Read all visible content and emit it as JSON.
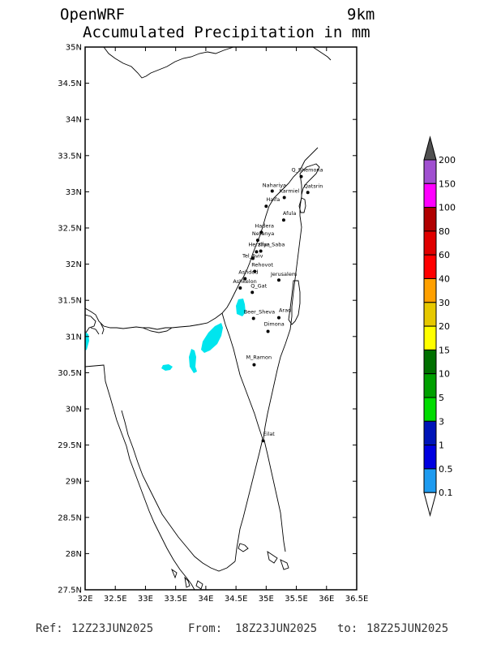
{
  "header": {
    "model": "OpenWRF",
    "resolution": "9km",
    "product": "Accumulated Precipitation in mm"
  },
  "axes": {
    "lat_ticks": [
      "35N",
      "34.5N",
      "34N",
      "33.5N",
      "33N",
      "32.5N",
      "32N",
      "31.5N",
      "31N",
      "30.5N",
      "30N",
      "29.5N",
      "29N",
      "28.5N",
      "28N",
      "27.5N"
    ],
    "lon_ticks": [
      "32E",
      "32.5E",
      "33E",
      "33.5E",
      "34E",
      "34.5E",
      "35E",
      "35.5E",
      "36E",
      "36.5E"
    ],
    "lat_range": [
      27.5,
      35
    ],
    "lon_range": [
      32,
      36.5
    ]
  },
  "cities": [
    {
      "name": "Q_Shemona",
      "lon": 35.58,
      "lat": 33.21
    },
    {
      "name": "Nahariya",
      "lon": 35.1,
      "lat": 33.01
    },
    {
      "name": "Karmiel",
      "lon": 35.3,
      "lat": 32.92
    },
    {
      "name": "Qatsrin",
      "lon": 35.69,
      "lat": 32.99
    },
    {
      "name": "Haifa",
      "lon": 35.0,
      "lat": 32.8
    },
    {
      "name": "Afula",
      "lon": 35.29,
      "lat": 32.61
    },
    {
      "name": "Hadera",
      "lon": 34.92,
      "lat": 32.44
    },
    {
      "name": "Netanya",
      "lon": 34.86,
      "lat": 32.33
    },
    {
      "name": "Herzliya",
      "lon": 34.84,
      "lat": 32.17
    },
    {
      "name": "Kfar_Saba",
      "lon": 34.91,
      "lat": 32.18
    },
    {
      "name": "Tel_Aviv",
      "lon": 34.78,
      "lat": 32.08
    },
    {
      "name": "Rehovot",
      "lon": 34.81,
      "lat": 31.9
    },
    {
      "name": "Ashdod",
      "lon": 34.65,
      "lat": 31.8
    },
    {
      "name": "Ashkelon",
      "lon": 34.57,
      "lat": 31.67
    },
    {
      "name": "Jerusalem",
      "lon": 35.21,
      "lat": 31.78
    },
    {
      "name": "Q_Gat",
      "lon": 34.77,
      "lat": 31.61
    },
    {
      "name": "Beer_Sheva",
      "lon": 34.79,
      "lat": 31.25
    },
    {
      "name": "Arad",
      "lon": 35.21,
      "lat": 31.26
    },
    {
      "name": "Dimona",
      "lon": 35.03,
      "lat": 31.07
    },
    {
      "name": "M_Ramon",
      "lon": 34.8,
      "lat": 30.61
    },
    {
      "name": "Eilat",
      "lon": 34.95,
      "lat": 29.56
    }
  ],
  "colorbar": {
    "levels": [
      "0.1",
      "0.5",
      "1",
      "3",
      "5",
      "10",
      "15",
      "20",
      "30",
      "40",
      "60",
      "80",
      "100",
      "150",
      "200"
    ],
    "colors": [
      "#00e5ee",
      "#1e9bf0",
      "#0000e0",
      "#0014b8",
      "#00dc00",
      "#00a000",
      "#007000",
      "#ffff00",
      "#e6c800",
      "#ffa000",
      "#ff0000",
      "#e00000",
      "#b00000",
      "#ff00ff",
      "#a050d0",
      "#505050"
    ]
  },
  "precip_color": "#00e5ee",
  "footer": {
    "ref_label": "Ref:",
    "ref": "12Z23JUN2025",
    "from_label": "From:",
    "from": "18Z23JUN2025",
    "to_label": "to:",
    "to": "18Z25JUN2025"
  }
}
